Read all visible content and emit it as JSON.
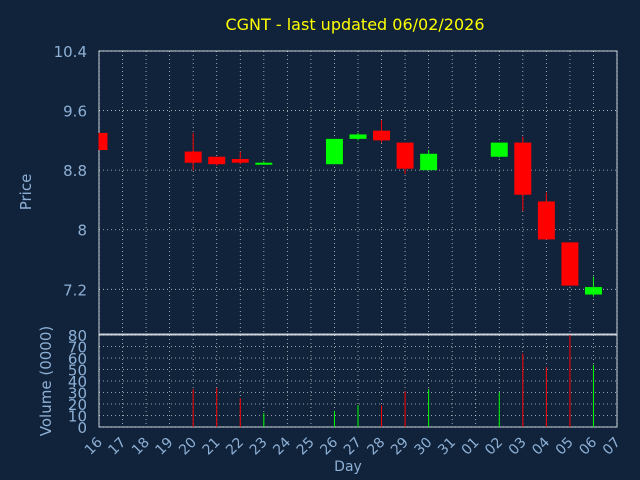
{
  "colors": {
    "background": "#10233a",
    "title": "#ffff00",
    "axis_text": "#8eb0d6",
    "grid": "#ffffff",
    "up": "#00ff00",
    "down": "#ff0000"
  },
  "chart_data": [
    {
      "type": "candlestick",
      "title": "CGNT - last updated 06/02/2026",
      "ylabel": "Price",
      "ylim": [
        6.6,
        10.4
      ],
      "yticks": [
        "10.4",
        "9.6",
        "8.8",
        "8",
        "7.2"
      ],
      "grid": true,
      "candles": [
        {
          "day": "16",
          "open": 9.3,
          "close": 9.07,
          "high": 9.3,
          "low": 9.07
        },
        {
          "day": "20",
          "open": 9.05,
          "close": 8.9,
          "high": 9.3,
          "low": 8.8
        },
        {
          "day": "21",
          "open": 8.98,
          "close": 8.88,
          "high": 8.98,
          "low": 8.86
        },
        {
          "day": "22",
          "open": 8.95,
          "close": 8.9,
          "high": 9.05,
          "low": 8.88
        },
        {
          "day": "23",
          "open": 8.88,
          "close": 8.9,
          "high": 8.92,
          "low": 8.88
        },
        {
          "day": "26",
          "open": 8.88,
          "close": 9.22,
          "high": 9.22,
          "low": 8.88
        },
        {
          "day": "27",
          "open": 9.22,
          "close": 9.28,
          "high": 9.3,
          "low": 9.2
        },
        {
          "day": "28",
          "open": 9.33,
          "close": 9.2,
          "high": 9.47,
          "low": 9.17
        },
        {
          "day": "29",
          "open": 9.17,
          "close": 8.82,
          "high": 9.17,
          "low": 8.75
        },
        {
          "day": "30",
          "open": 8.8,
          "close": 9.02,
          "high": 9.07,
          "low": 8.8
        },
        {
          "day": "02",
          "open": 8.98,
          "close": 9.17,
          "high": 9.17,
          "low": 8.97
        },
        {
          "day": "03",
          "open": 9.17,
          "close": 8.47,
          "high": 9.25,
          "low": 8.25
        },
        {
          "day": "04",
          "open": 8.38,
          "close": 7.87,
          "high": 8.5,
          "low": 7.87
        },
        {
          "day": "05",
          "open": 7.83,
          "close": 7.25,
          "high": 7.83,
          "low": 7.25
        },
        {
          "day": "06",
          "open": 7.13,
          "close": 7.23,
          "high": 7.37,
          "low": 7.1
        }
      ]
    },
    {
      "type": "bar",
      "ylabel": "Volume (0000)",
      "xlabel": "Day",
      "ylim": [
        0,
        80
      ],
      "yticks": [
        "80",
        "70",
        "60",
        "50",
        "40",
        "30",
        "20",
        "10",
        "0"
      ],
      "grid": true,
      "categories": [
        "16",
        "17",
        "18",
        "19",
        "20",
        "21",
        "22",
        "23",
        "24",
        "25",
        "26",
        "27",
        "28",
        "29",
        "30",
        "31",
        "01",
        "02",
        "03",
        "04",
        "05",
        "06",
        "07"
      ],
      "values": [
        0,
        0,
        0,
        0,
        33,
        34,
        25,
        12,
        0,
        0,
        14,
        19,
        19,
        31,
        33,
        0,
        0,
        30,
        64,
        52,
        80,
        54,
        0
      ],
      "directions": [
        "",
        "",
        "",
        "",
        "down",
        "down",
        "down",
        "up",
        "",
        "",
        "up",
        "up",
        "down",
        "down",
        "up",
        "",
        "",
        "up",
        "down",
        "down",
        "down",
        "up",
        ""
      ]
    }
  ]
}
